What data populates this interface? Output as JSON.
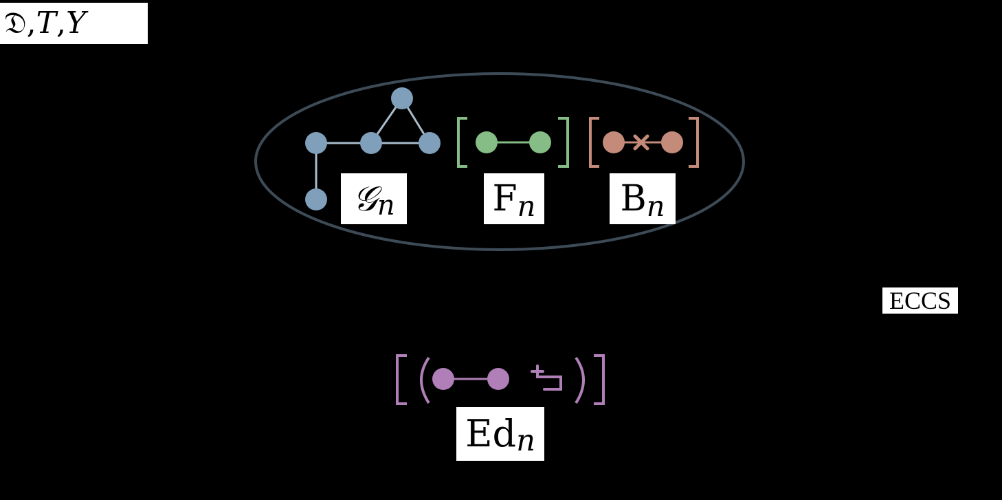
{
  "inputs_label": {
    "main": "𝔇, ",
    "t": "T",
    "sep": ", ",
    "y": "Y"
  },
  "graph_label": {
    "main": "𝒢",
    "sub": "n"
  },
  "forced_label": {
    "main": "F",
    "sub": "n"
  },
  "banned_label": {
    "main": "B",
    "sub": "n"
  },
  "method_label": "ECCS",
  "edits_label": {
    "main": "Ed",
    "sub": "n"
  },
  "colors": {
    "background": "#000000",
    "graph_nodes": "#7f9fbb",
    "graph_edges": "#a8bccd",
    "forced": "#86bd86",
    "banned": "#c48b7b",
    "edits": "#b07fb8",
    "ellipse": "#3d4b57"
  }
}
